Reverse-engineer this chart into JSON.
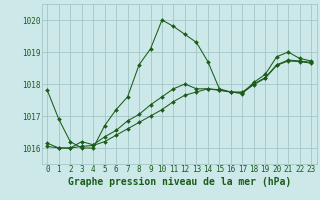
{
  "background_color": "#cde8e8",
  "plot_bg_color": "#cde8e8",
  "grid_color": "#9bbfbf",
  "line_color": "#1a5c1a",
  "marker_color": "#1a5c1a",
  "xlim": [
    -0.5,
    23.5
  ],
  "ylim": [
    1015.5,
    1020.5
  ],
  "yticks": [
    1016,
    1017,
    1018,
    1019,
    1020
  ],
  "xticks": [
    0,
    1,
    2,
    3,
    4,
    5,
    6,
    7,
    8,
    9,
    10,
    11,
    12,
    13,
    14,
    15,
    16,
    17,
    18,
    19,
    20,
    21,
    22,
    23
  ],
  "series": [
    [
      1017.8,
      1016.9,
      1016.2,
      1016.0,
      1016.0,
      1016.7,
      1017.2,
      1017.6,
      1018.6,
      1019.1,
      1020.0,
      1019.8,
      1019.55,
      1019.3,
      1018.7,
      1017.85,
      1017.75,
      1017.7,
      1018.05,
      1018.3,
      1018.85,
      1019.0,
      1018.8,
      1018.72
    ],
    [
      1016.15,
      1016.0,
      1016.0,
      1016.2,
      1016.1,
      1016.35,
      1016.55,
      1016.85,
      1017.05,
      1017.35,
      1017.6,
      1017.85,
      1018.0,
      1017.85,
      1017.85,
      1017.8,
      1017.75,
      1017.75,
      1018.0,
      1018.2,
      1018.6,
      1018.75,
      1018.72,
      1018.68
    ],
    [
      1016.05,
      1016.0,
      1016.0,
      1016.05,
      1016.08,
      1016.2,
      1016.4,
      1016.6,
      1016.8,
      1017.0,
      1017.2,
      1017.45,
      1017.65,
      1017.75,
      1017.85,
      1017.82,
      1017.75,
      1017.72,
      1017.98,
      1018.18,
      1018.58,
      1018.72,
      1018.7,
      1018.65
    ]
  ],
  "xlabel": "Graphe pression niveau de la mer (hPa)",
  "xlabel_fontsize": 7,
  "tick_fontsize": 5.5,
  "ylabel_fontsize": 5.5,
  "linewidth": 0.75,
  "markersize": 2.0
}
